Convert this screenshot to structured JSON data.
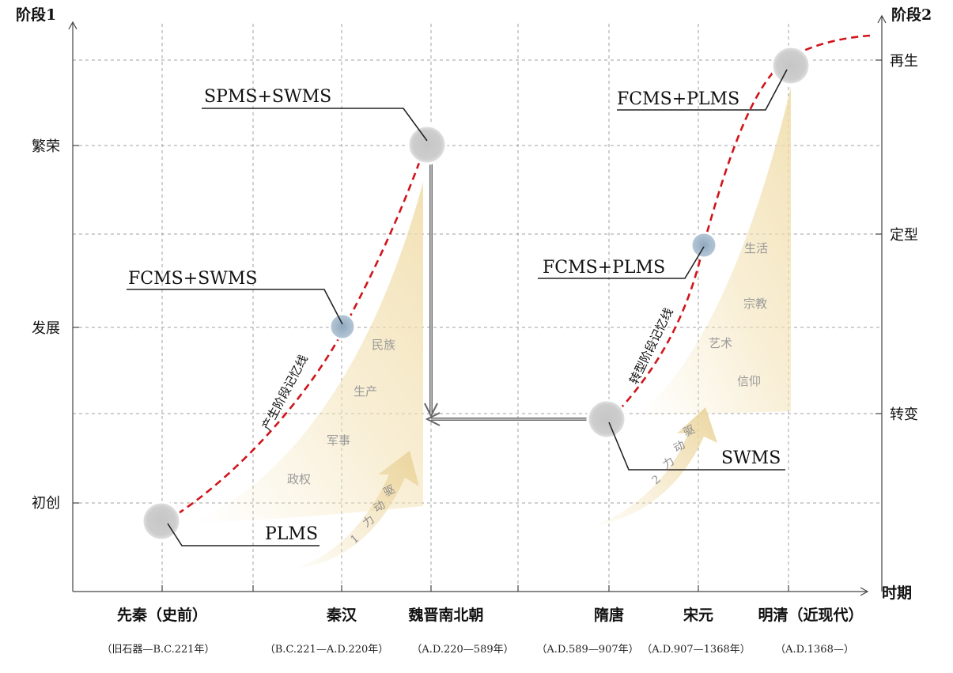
{
  "axes": {
    "left_title": "阶段1",
    "right_title": "阶段2",
    "x_title": "时期",
    "left_levels": [
      "初创",
      "发展",
      "繁荣"
    ],
    "right_levels": [
      "转变",
      "定型",
      "再生"
    ]
  },
  "periods": [
    {
      "name": "先秦（史前）",
      "range": "（旧石器—B.C.221年）"
    },
    {
      "name": "秦汉",
      "range": "（B.C.221—A.D.220年）"
    },
    {
      "name": "魏晋南北朝",
      "range": "（A.D.220—589年）"
    },
    {
      "name": "隋唐",
      "range": "（A.D.589—907年）"
    },
    {
      "name": "宋元",
      "range": "（A.D.907—1368年）"
    },
    {
      "name": "明清（近现代）",
      "range": "（A.D.1368—）"
    }
  ],
  "curves": {
    "curve1_label": "产生阶段记忆线",
    "curve2_label": "转型阶段记忆线",
    "color": "#d0141a"
  },
  "nodes": {
    "n1": "PLMS",
    "n2": "FCMS+SWMS",
    "n3": "SPMS+SWMS",
    "n4": "SWMS",
    "n5": "FCMS+PLMS",
    "n6": "FCMS+PLMS"
  },
  "drivers": {
    "d1_words": [
      "政权",
      "军事",
      "生产",
      "民族"
    ],
    "d1_arrow": [
      "驱",
      "动",
      "力",
      "1"
    ],
    "d2_words": [
      "信仰",
      "艺术",
      "宗教",
      "生活"
    ],
    "d2_arrow": [
      "驱",
      "动",
      "力",
      "2"
    ]
  },
  "colors": {
    "axis": "#333333",
    "grid": "#9a9a9a",
    "node_gray": "#c9c9c9",
    "node_blue": "#9fb6c9",
    "wedge": "#f3e2b5",
    "word": "#9a9a9a"
  }
}
